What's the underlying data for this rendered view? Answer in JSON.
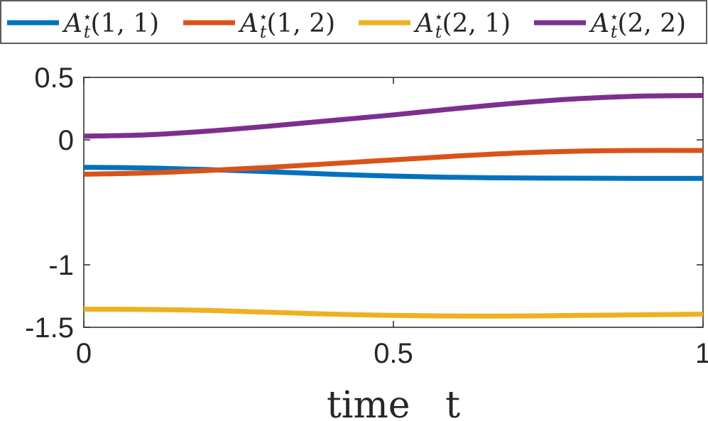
{
  "chart_data": {
    "type": "line",
    "title": "",
    "xlabel": "time   t",
    "ylabel": "",
    "xlim": [
      0,
      1
    ],
    "ylim": [
      -1.5,
      0.5
    ],
    "xticks": [
      0,
      0.5,
      1
    ],
    "xtick_labels": [
      "0",
      "0.5",
      "1"
    ],
    "yticks": [
      -1.5,
      -1,
      0,
      0.5
    ],
    "ytick_labels": [
      "-1.5",
      "-1",
      "0",
      "0.5"
    ],
    "grid": false,
    "legend_position": "top",
    "series": [
      {
        "name": "A_t*(1,1)",
        "label_main": "A",
        "label_sup": "⋆",
        "label_sub": "t",
        "label_args": "(1, 1)",
        "color": "#0072BD",
        "x": [
          0,
          0.1,
          0.2,
          0.3,
          0.4,
          0.5,
          0.6,
          0.7,
          0.8,
          0.9,
          1.0
        ],
        "y": [
          -0.22,
          -0.225,
          -0.238,
          -0.255,
          -0.275,
          -0.29,
          -0.3,
          -0.305,
          -0.307,
          -0.308,
          -0.308
        ]
      },
      {
        "name": "A_t*(1,2)",
        "label_main": "A",
        "label_sup": "⋆",
        "label_sub": "t",
        "label_args": "(1, 2)",
        "color": "#D95319",
        "x": [
          0,
          0.1,
          0.2,
          0.3,
          0.4,
          0.5,
          0.6,
          0.7,
          0.8,
          0.9,
          1.0
        ],
        "y": [
          -0.275,
          -0.265,
          -0.245,
          -0.22,
          -0.19,
          -0.16,
          -0.13,
          -0.105,
          -0.09,
          -0.085,
          -0.085
        ]
      },
      {
        "name": "A_t*(2,1)",
        "label_main": "A",
        "label_sup": "⋆",
        "label_sub": "t",
        "label_args": "(2, 1)",
        "color": "#EDB120",
        "x": [
          0,
          0.1,
          0.2,
          0.3,
          0.4,
          0.5,
          0.6,
          0.7,
          0.8,
          0.9,
          1.0
        ],
        "y": [
          -1.355,
          -1.357,
          -1.365,
          -1.38,
          -1.395,
          -1.405,
          -1.41,
          -1.41,
          -1.405,
          -1.4,
          -1.395
        ]
      },
      {
        "name": "A_t*(2,2)",
        "label_main": "A",
        "label_sup": "⋆",
        "label_sub": "t",
        "label_args": "(2, 2)",
        "color": "#7E2F8E",
        "x": [
          0,
          0.1,
          0.2,
          0.3,
          0.4,
          0.5,
          0.6,
          0.7,
          0.8,
          0.9,
          1.0
        ],
        "y": [
          0.03,
          0.04,
          0.07,
          0.11,
          0.155,
          0.2,
          0.25,
          0.295,
          0.33,
          0.35,
          0.355
        ]
      }
    ]
  }
}
